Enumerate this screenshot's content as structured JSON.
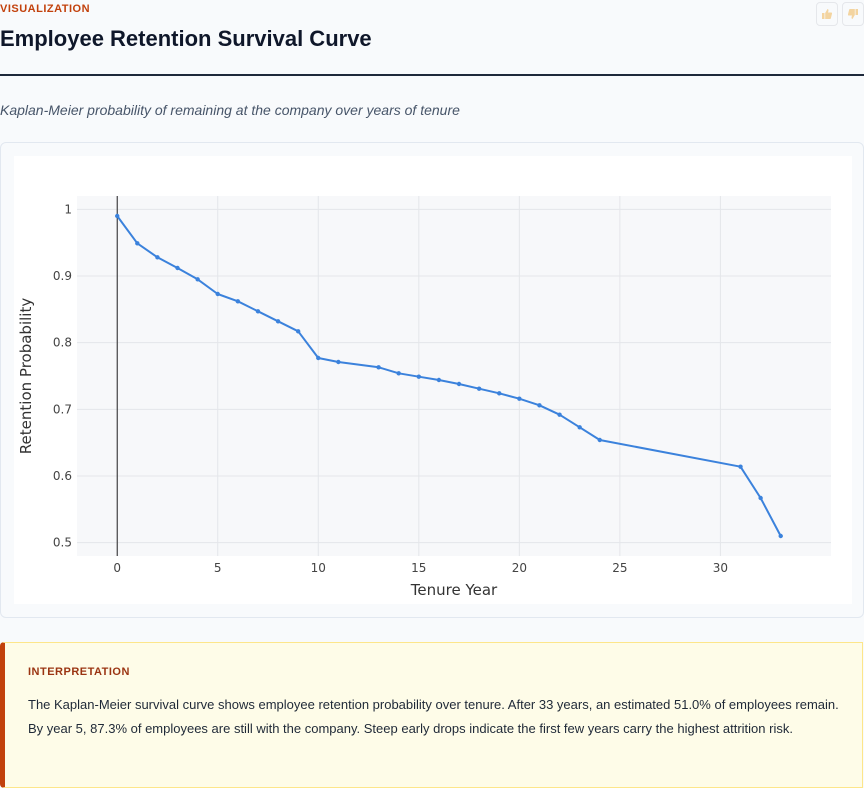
{
  "header": {
    "kicker": "VISUALIZATION",
    "title": "Employee Retention Survival Curve",
    "subtitle": "Kaplan-Meier probability of remaining at the company over years of tenure"
  },
  "feedback": {
    "up_icon": "thumbs-up-icon",
    "down_icon": "thumbs-down-icon"
  },
  "chart_data": {
    "type": "line",
    "title": "",
    "xlabel": "Tenure Year",
    "ylabel": "Retention Probability",
    "xlim": [
      -2,
      35.5
    ],
    "ylim": [
      0.48,
      1.02
    ],
    "xticks": [
      0,
      5,
      10,
      15,
      20,
      25,
      30
    ],
    "yticks": [
      0.5,
      0.6,
      0.7,
      0.8,
      0.9,
      1
    ],
    "ytick_labels": [
      "0.5",
      "0.6",
      "0.7",
      "0.8",
      "0.9",
      "1"
    ],
    "grid": true,
    "legend": "none",
    "series": [
      {
        "color": "#3b82dc",
        "x": [
          0,
          1,
          2,
          3,
          4,
          5,
          6,
          7,
          8,
          9,
          10,
          11,
          13,
          14,
          15,
          16,
          17,
          18,
          19,
          20,
          21,
          22,
          23,
          24,
          31,
          32,
          33
        ],
        "y": [
          0.99,
          0.949,
          0.928,
          0.912,
          0.895,
          0.873,
          0.862,
          0.847,
          0.832,
          0.817,
          0.777,
          0.771,
          0.763,
          0.754,
          0.749,
          0.744,
          0.738,
          0.731,
          0.724,
          0.716,
          0.706,
          0.692,
          0.673,
          0.654,
          0.614,
          0.567,
          0.51
        ]
      }
    ]
  },
  "interpretation": {
    "label": "INTERPRETATION",
    "text": "The Kaplan-Meier survival curve shows employee retention probability over tenure. After 33 years, an estimated 51.0% of employees remain. By year 5, 87.3% of employees are still with the company. Steep early drops indicate the first few years carry the highest attrition risk."
  }
}
